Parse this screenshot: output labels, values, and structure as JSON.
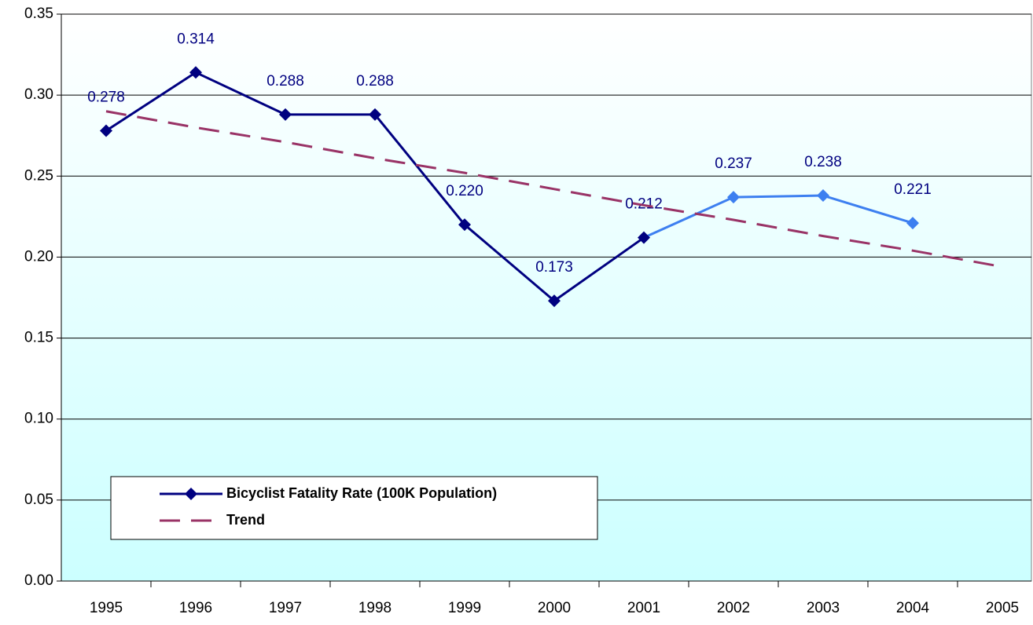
{
  "chart_data": {
    "type": "line",
    "categories": [
      "1995",
      "1996",
      "1997",
      "1998",
      "1999",
      "2000",
      "2001",
      "2002",
      "2003",
      "2004",
      "2005"
    ],
    "series": [
      {
        "name": "Bicyclist Fatality Rate (100K Population)",
        "color": "#000080",
        "point_colors": [
          "#000080",
          "#000080",
          "#000080",
          "#000080",
          "#000080",
          "#000080",
          "#000080",
          "#3d7ff0",
          "#3d7ff0",
          "#3d7ff0",
          null
        ],
        "values": [
          0.278,
          0.314,
          0.288,
          0.288,
          0.22,
          0.173,
          0.212,
          0.237,
          0.238,
          0.221,
          null
        ],
        "value_labels": [
          "0.278",
          "0.314",
          "0.288",
          "0.288",
          "0.220",
          "0.173",
          "0.212",
          "0.237",
          "0.238",
          "0.221",
          null
        ],
        "marker": "diamond"
      },
      {
        "name": "Trend",
        "color": "#993366",
        "dash": true,
        "values": [
          0.29,
          0.28,
          0.271,
          0.261,
          0.252,
          0.242,
          0.232,
          0.223,
          0.213,
          0.204,
          0.194
        ]
      }
    ],
    "ylim": [
      0,
      0.35
    ],
    "yticks": [
      {
        "value": 0,
        "label": "0.00"
      },
      {
        "value": 0.05,
        "label": "0.05"
      },
      {
        "value": 0.1,
        "label": "0.10"
      },
      {
        "value": 0.15,
        "label": "0.15"
      },
      {
        "value": 0.2,
        "label": "0.20"
      },
      {
        "value": 0.25,
        "label": "0.25"
      },
      {
        "value": 0.3,
        "label": "0.30"
      },
      {
        "value": 0.35,
        "label": "0.35"
      }
    ],
    "grid": true,
    "legend": "bottom-left"
  }
}
